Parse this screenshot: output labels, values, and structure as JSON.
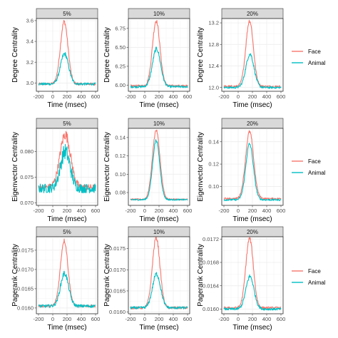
{
  "colors": {
    "face": "#F8766D",
    "animal": "#00BFC4"
  },
  "chart_data": {
    "type": "line",
    "x_ticks": [
      -200,
      0,
      200,
      400,
      600
    ],
    "xlim": [
      -230,
      630
    ],
    "xlabel": "Time (msec)",
    "legends": [
      {
        "row": 0,
        "entries": [
          "Face",
          "Animal"
        ]
      },
      {
        "row": 1,
        "entries": [
          "Face",
          "Animal"
        ]
      },
      {
        "row": 2,
        "entries": [
          "Face",
          "Animal"
        ]
      }
    ],
    "panels": [
      {
        "row": 0,
        "col": 0,
        "strip": "5%",
        "ylabel": "Degree Centrality",
        "ylim": [
          2.92,
          3.62
        ],
        "y_ticks": [
          3.0,
          3.2,
          3.4,
          3.6
        ],
        "y_tick_labels": [
          "3.0",
          "3.2",
          "3.4",
          "3.6"
        ],
        "series": [
          {
            "name": "Face",
            "base": 2.99,
            "peak": 3.59,
            "center": 160,
            "width": 75,
            "noise": 0.012
          },
          {
            "name": "Animal",
            "base": 2.99,
            "peak": 3.28,
            "center": 165,
            "width": 80,
            "noise": 0.012
          }
        ]
      },
      {
        "row": 0,
        "col": 1,
        "strip": "10%",
        "ylabel": "Degree Centrality",
        "ylim": [
          5.92,
          6.88
        ],
        "y_ticks": [
          6.0,
          6.25,
          6.5,
          6.75
        ],
        "y_tick_labels": [
          "6.00",
          "6.25",
          "6.50",
          "6.75"
        ],
        "series": [
          {
            "name": "Face",
            "base": 5.99,
            "peak": 6.85,
            "center": 160,
            "width": 75,
            "noise": 0.015
          },
          {
            "name": "Animal",
            "base": 5.98,
            "peak": 6.48,
            "center": 165,
            "width": 80,
            "noise": 0.015
          }
        ]
      },
      {
        "row": 0,
        "col": 2,
        "strip": "20%",
        "ylabel": "Degree Centrality",
        "ylim": [
          11.93,
          13.28
        ],
        "y_ticks": [
          12.0,
          12.4,
          12.8,
          13.2
        ],
        "y_tick_labels": [
          "12.0",
          "12.4",
          "12.8",
          "13.2"
        ],
        "series": [
          {
            "name": "Face",
            "base": 12.02,
            "peak": 13.24,
            "center": 160,
            "width": 75,
            "noise": 0.02
          },
          {
            "name": "Animal",
            "base": 12.0,
            "peak": 12.62,
            "center": 165,
            "width": 80,
            "noise": 0.02
          }
        ]
      },
      {
        "row": 1,
        "col": 0,
        "strip": "5%",
        "ylabel": "Eigenvector Centrality",
        "ylim": [
          0.0695,
          0.0845
        ],
        "y_ticks": [
          0.07,
          0.075,
          0.08
        ],
        "y_tick_labels": [
          "0.070",
          "0.075",
          "0.080"
        ],
        "series": [
          {
            "name": "Face",
            "base": 0.073,
            "peak": 0.0833,
            "center": 175,
            "width": 105,
            "noise": 0.0006
          },
          {
            "name": "Animal",
            "base": 0.0728,
            "peak": 0.08,
            "center": 175,
            "width": 95,
            "noise": 0.0009
          }
        ]
      },
      {
        "row": 1,
        "col": 1,
        "strip": "10%",
        "ylabel": "Eigenvector Centrality",
        "ylim": [
          0.066,
          0.15
        ],
        "y_ticks": [
          0.08,
          0.1,
          0.12,
          0.14
        ],
        "y_tick_labels": [
          "0.08",
          "0.10",
          "0.12",
          "0.14"
        ],
        "series": [
          {
            "name": "Face",
            "base": 0.0725,
            "peak": 0.148,
            "center": 160,
            "width": 75,
            "noise": 0.0008
          },
          {
            "name": "Animal",
            "base": 0.0722,
            "peak": 0.137,
            "center": 160,
            "width": 70,
            "noise": 0.0008
          }
        ]
      },
      {
        "row": 1,
        "col": 2,
        "strip": "20%",
        "ylabel": "Eigenvector Centrality",
        "ylim": [
          0.083,
          0.152
        ],
        "y_ticks": [
          0.1,
          0.12,
          0.14
        ],
        "y_tick_labels": [
          "0.10",
          "0.12",
          "0.14"
        ],
        "series": [
          {
            "name": "Face",
            "base": 0.089,
            "peak": 0.149,
            "center": 160,
            "width": 80,
            "noise": 0.0008
          },
          {
            "name": "Animal",
            "base": 0.088,
            "peak": 0.138,
            "center": 160,
            "width": 75,
            "noise": 0.0008
          }
        ]
      },
      {
        "row": 2,
        "col": 0,
        "strip": "5%",
        "ylabel": "Pagerank Centrality",
        "ylim": [
          0.01585,
          0.01785
        ],
        "y_ticks": [
          0.016,
          0.0165,
          0.017,
          0.0175
        ],
        "y_tick_labels": [
          "0.0160",
          "0.0165",
          "0.0170",
          "0.0175"
        ],
        "series": [
          {
            "name": "Face",
            "base": 0.01605,
            "peak": 0.01775,
            "center": 160,
            "width": 75,
            "noise": 3e-05
          },
          {
            "name": "Animal",
            "base": 0.01605,
            "peak": 0.0169,
            "center": 165,
            "width": 80,
            "noise": 4e-05
          }
        ]
      },
      {
        "row": 2,
        "col": 1,
        "strip": "10%",
        "ylabel": "Pagerank Centrality",
        "ylim": [
          0.01596,
          0.01778
        ],
        "y_ticks": [
          0.016,
          0.0165,
          0.017,
          0.0175
        ],
        "y_tick_labels": [
          "0.0160",
          "0.0165",
          "0.0170",
          "0.0175"
        ],
        "series": [
          {
            "name": "Face",
            "base": 0.0161,
            "peak": 0.01776,
            "center": 160,
            "width": 75,
            "noise": 3e-05
          },
          {
            "name": "Animal",
            "base": 0.0161,
            "peak": 0.0169,
            "center": 165,
            "width": 80,
            "noise": 3e-05
          }
        ]
      },
      {
        "row": 2,
        "col": 2,
        "strip": "20%",
        "ylabel": "Pagerank Centrality",
        "ylim": [
          0.01592,
          0.01724
        ],
        "y_ticks": [
          0.016,
          0.0164,
          0.0168,
          0.0172
        ],
        "y_tick_labels": [
          "0.0160",
          "0.0164",
          "0.0168",
          "0.0172"
        ],
        "series": [
          {
            "name": "Face",
            "base": 0.01602,
            "peak": 0.01721,
            "center": 160,
            "width": 75,
            "noise": 2e-05
          },
          {
            "name": "Animal",
            "base": 0.016,
            "peak": 0.01656,
            "center": 165,
            "width": 80,
            "noise": 2e-05
          }
        ]
      }
    ]
  }
}
